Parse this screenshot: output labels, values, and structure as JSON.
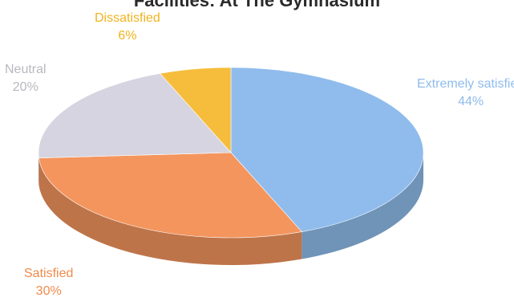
{
  "chart_data": {
    "type": "pie",
    "title": "Facilities: At The Gymnasium",
    "style": "3d",
    "slices": [
      {
        "name": "Extremely satisfied",
        "percent_label": "44%",
        "value": 44,
        "color": "#8fbcec",
        "label_color": "#8fbcec"
      },
      {
        "name": "Satisfied",
        "percent_label": "30%",
        "value": 30,
        "color": "#f4955e",
        "label_color": "#f08a4b"
      },
      {
        "name": "Neutral",
        "percent_label": "20%",
        "value": 20,
        "color": "#d6d4e0",
        "label_color": "#b8b8c0"
      },
      {
        "name": "Dissatisfied",
        "percent_label": "6%",
        "value": 6,
        "color": "#f6bd3c",
        "label_color": "#f0b31e"
      }
    ]
  }
}
